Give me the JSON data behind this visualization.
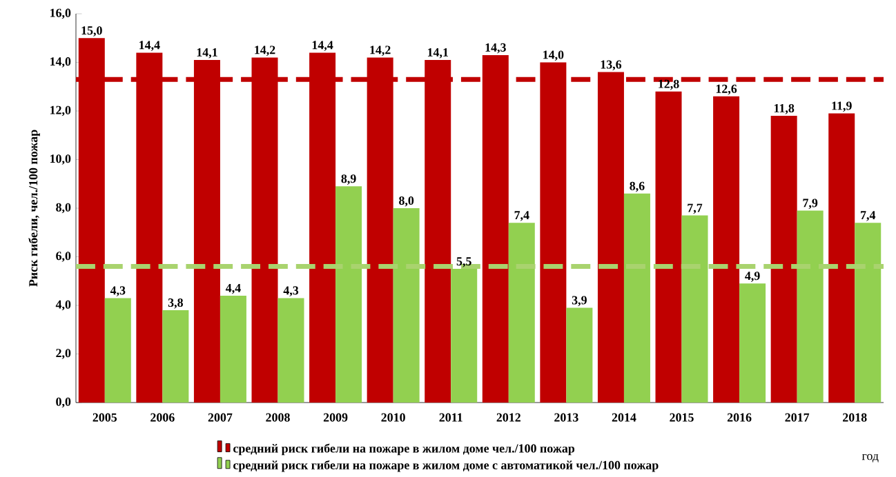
{
  "chart_data": {
    "type": "bar",
    "ylabel": "Риск гибели, чел./100 пожар",
    "xlabel": "год",
    "categories": [
      "2005",
      "2006",
      "2007",
      "2008",
      "2009",
      "2010",
      "2011",
      "2012",
      "2013",
      "2014",
      "2015",
      "2016",
      "2017",
      "2018"
    ],
    "series": [
      {
        "name": "средний риск гибели на пожаре в жилом доме чел./100 пожар",
        "color": "#c00000",
        "values": [
          15.0,
          14.4,
          14.1,
          14.2,
          14.4,
          14.2,
          14.1,
          14.3,
          14.0,
          13.6,
          12.8,
          12.6,
          11.8,
          11.9
        ],
        "value_labels": [
          "15,0",
          "14,4",
          "14,1",
          "14,2",
          "14,4",
          "14,2",
          "14,1",
          "14,3",
          "14,0",
          "13,6",
          "12,8",
          "12,6",
          "11,8",
          "11,9"
        ]
      },
      {
        "name": "средний риск гибели на пожаре в жилом доме с автоматикой чел./100 пожар",
        "color": "#92d050",
        "values": [
          4.3,
          3.8,
          4.4,
          4.3,
          8.9,
          8.0,
          5.5,
          7.4,
          3.9,
          8.6,
          7.7,
          4.9,
          7.9,
          7.4
        ],
        "value_labels": [
          "4,3",
          "3,8",
          "4,4",
          "4,3",
          "8,9",
          "8,0",
          "5,5",
          "7,4",
          "3,9",
          "8,6",
          "7,7",
          "4,9",
          "7,9",
          "7,4"
        ]
      }
    ],
    "ylim": [
      0,
      16
    ],
    "yticks": [
      {
        "value": 0,
        "label": "0,0"
      },
      {
        "value": 2,
        "label": "2,0"
      },
      {
        "value": 4,
        "label": "4,0"
      },
      {
        "value": 6,
        "label": "6,0"
      },
      {
        "value": 8,
        "label": "8,0"
      },
      {
        "value": 10,
        "label": "10,0"
      },
      {
        "value": 12,
        "label": "12,0"
      },
      {
        "value": 14,
        "label": "14,0"
      },
      {
        "value": 16,
        "label": "16,0"
      }
    ],
    "ref_lines": [
      {
        "axis": "y",
        "value": 13.3,
        "color": "#c00000",
        "line_style": "dashed"
      },
      {
        "axis": "y",
        "value": 5.6,
        "color": "#a9d36e",
        "line_style": "dashed"
      }
    ],
    "legend": "bottom",
    "grid": false
  }
}
